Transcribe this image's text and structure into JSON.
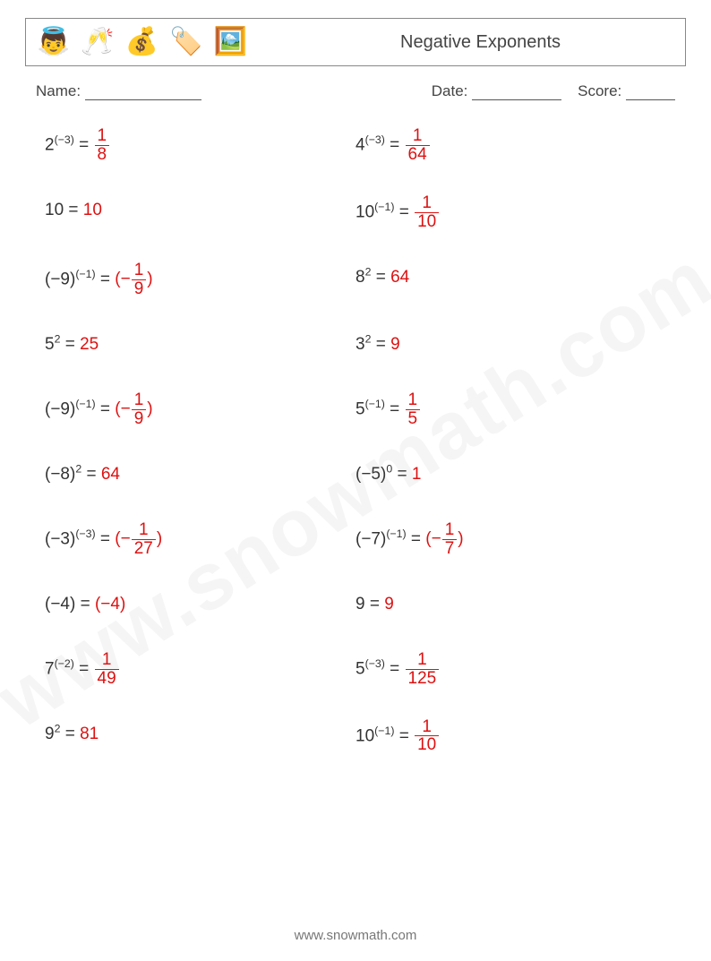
{
  "header": {
    "title": "Negative Exponents",
    "icons": [
      "👼",
      "🥂",
      "💰",
      "🏷️",
      "🖼️"
    ]
  },
  "meta": {
    "name_label": "Name:",
    "date_label": "Date:",
    "score_label": "Score:"
  },
  "watermark": "www.snowmath.com",
  "footer": "www.snowmath.com",
  "problems": {
    "left": [
      {
        "base": "2",
        "exp": "(−3)",
        "ans_type": "frac",
        "num": "1",
        "den": "8"
      },
      {
        "base": "10",
        "exp": "",
        "ans_type": "plain",
        "val": "10"
      },
      {
        "base": "(−9)",
        "exp": "(−1)",
        "ans_type": "negparenfrac",
        "num": "1",
        "den": "9"
      },
      {
        "base": "5",
        "exp": "2",
        "ans_type": "plain",
        "val": "25"
      },
      {
        "base": "(−9)",
        "exp": "(−1)",
        "ans_type": "negparenfrac",
        "num": "1",
        "den": "9"
      },
      {
        "base": "(−8)",
        "exp": "2",
        "ans_type": "plain",
        "val": "64"
      },
      {
        "base": "(−3)",
        "exp": "(−3)",
        "ans_type": "negparenfrac",
        "num": "1",
        "den": "27"
      },
      {
        "base": "(−4)",
        "exp": "",
        "ans_type": "plain",
        "val": "(−4)"
      },
      {
        "base": "7",
        "exp": "(−2)",
        "ans_type": "frac",
        "num": "1",
        "den": "49"
      },
      {
        "base": "9",
        "exp": "2",
        "ans_type": "plain",
        "val": "81"
      }
    ],
    "right": [
      {
        "base": "4",
        "exp": "(−3)",
        "ans_type": "frac",
        "num": "1",
        "den": "64"
      },
      {
        "base": "10",
        "exp": "(−1)",
        "ans_type": "frac",
        "num": "1",
        "den": "10"
      },
      {
        "base": "8",
        "exp": "2",
        "ans_type": "plain",
        "val": "64"
      },
      {
        "base": "3",
        "exp": "2",
        "ans_type": "plain",
        "val": "9"
      },
      {
        "base": "5",
        "exp": "(−1)",
        "ans_type": "frac",
        "num": "1",
        "den": "5"
      },
      {
        "base": "(−5)",
        "exp": "0",
        "ans_type": "plain",
        "val": "1"
      },
      {
        "base": "(−7)",
        "exp": "(−1)",
        "ans_type": "negparenfrac",
        "num": "1",
        "den": "7"
      },
      {
        "base": "9",
        "exp": "",
        "ans_type": "plain",
        "val": "9"
      },
      {
        "base": "5",
        "exp": "(−3)",
        "ans_type": "frac",
        "num": "1",
        "den": "125"
      },
      {
        "base": "10",
        "exp": "(−1)",
        "ans_type": "frac",
        "num": "1",
        "den": "10"
      }
    ]
  }
}
